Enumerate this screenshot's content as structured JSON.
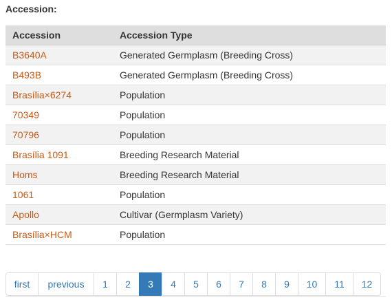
{
  "section_title": "Accession:",
  "table": {
    "headers": [
      "Accession",
      "Accession Type"
    ],
    "rows": [
      {
        "accession": "B3640A",
        "type": "Generated Germplasm (Breeding Cross)"
      },
      {
        "accession": "B493B",
        "type": "Generated Germplasm (Breeding Cross)"
      },
      {
        "accession": "Brasília×6274",
        "type": "Population"
      },
      {
        "accession": "70349",
        "type": "Population"
      },
      {
        "accession": "70796",
        "type": "Population"
      },
      {
        "accession": "Brasília 1091",
        "type": "Breeding Research Material"
      },
      {
        "accession": "Homs",
        "type": "Breeding Research Material"
      },
      {
        "accession": "1061",
        "type": "Population"
      },
      {
        "accession": "Apollo",
        "type": "Cultivar (Germplasm Variety)"
      },
      {
        "accession": "Brasília×HCM",
        "type": "Population"
      }
    ]
  },
  "pager": {
    "first": "first",
    "previous": "previous",
    "pages": [
      "1",
      "2",
      "3",
      "4",
      "5",
      "6",
      "7",
      "8",
      "9",
      "10",
      "11",
      "12"
    ],
    "active_page": "3"
  },
  "colors": {
    "link": "#c75a16",
    "pager_link": "#337ab7",
    "pager_active_bg": "#337ab7",
    "header_bg": "#dedede",
    "stripe_bg": "#f2f2f2"
  }
}
